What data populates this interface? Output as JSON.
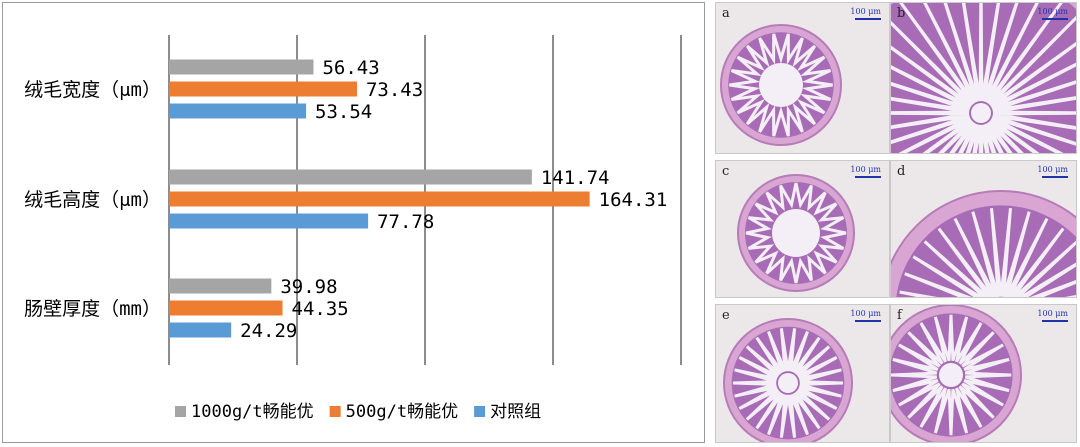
{
  "chart_data": {
    "type": "bar",
    "orientation": "horizontal",
    "categories": [
      "绒毛宽度（μm）",
      "绒毛高度（μm）",
      "肠壁厚度（mm）"
    ],
    "series": [
      {
        "name": "1000g/t畅能优",
        "color": "#a5a5a5",
        "values": [
          56.43,
          141.74,
          39.98
        ]
      },
      {
        "name": "500g/t畅能优",
        "color": "#ed7d31",
        "values": [
          73.43,
          164.31,
          44.35
        ]
      },
      {
        "name": "对照组",
        "color": "#5b9bd5",
        "values": [
          53.54,
          77.78,
          24.29
        ]
      }
    ],
    "value_labels": [
      [
        "56.43",
        "141.74",
        "39.98"
      ],
      [
        "73.43",
        "164.31",
        "44.35"
      ],
      [
        "53.54",
        "77.78",
        "24.29"
      ]
    ],
    "xlim": [
      0,
      200
    ],
    "grid": true,
    "legend_position": "bottom"
  },
  "micrographs": {
    "panels": [
      {
        "letter": "a",
        "scale": "100 μm"
      },
      {
        "letter": "b",
        "scale": "100 μm"
      },
      {
        "letter": "c",
        "scale": "100 μm"
      },
      {
        "letter": "d",
        "scale": "100 μm"
      },
      {
        "letter": "e",
        "scale": "100 μm"
      },
      {
        "letter": "f",
        "scale": "100 μm"
      }
    ]
  }
}
